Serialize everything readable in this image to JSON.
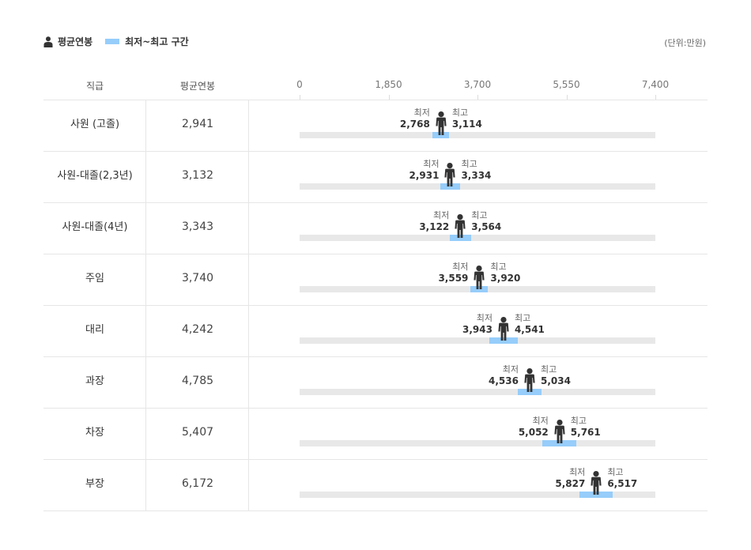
{
  "legend": {
    "avg_label": "평균연봉",
    "range_label": "최저~최고 구간"
  },
  "unit_label": "(단위:만원)",
  "headers": {
    "rank": "직급",
    "avg": "평균연봉"
  },
  "colors": {
    "band": "#96cdfa",
    "track": "#e8e8e8",
    "person": "#333333"
  },
  "chart_data": {
    "type": "range-bar",
    "xlim": [
      0,
      7400
    ],
    "ticks": [
      "0",
      "1,850",
      "3,700",
      "5,550",
      "7,400"
    ],
    "tick_values": [
      0,
      1850,
      3700,
      5550,
      7400
    ],
    "min_caption": "최저",
    "max_caption": "최고",
    "rows": [
      {
        "rank": "사원 (고졸)",
        "avg": 2941,
        "avg_label": "2,941",
        "min": 2768,
        "min_label": "2,768",
        "max": 3114,
        "max_label": "3,114"
      },
      {
        "rank": "사원-대졸(2,3년)",
        "avg": 3132,
        "avg_label": "3,132",
        "min": 2931,
        "min_label": "2,931",
        "max": 3334,
        "max_label": "3,334"
      },
      {
        "rank": "사원-대졸(4년)",
        "avg": 3343,
        "avg_label": "3,343",
        "min": 3122,
        "min_label": "3,122",
        "max": 3564,
        "max_label": "3,564"
      },
      {
        "rank": "주임",
        "avg": 3740,
        "avg_label": "3,740",
        "min": 3559,
        "min_label": "3,559",
        "max": 3920,
        "max_label": "3,920"
      },
      {
        "rank": "대리",
        "avg": 4242,
        "avg_label": "4,242",
        "min": 3943,
        "min_label": "3,943",
        "max": 4541,
        "max_label": "4,541"
      },
      {
        "rank": "과장",
        "avg": 4785,
        "avg_label": "4,785",
        "min": 4536,
        "min_label": "4,536",
        "max": 5034,
        "max_label": "5,034"
      },
      {
        "rank": "차장",
        "avg": 5407,
        "avg_label": "5,407",
        "min": 5052,
        "min_label": "5,052",
        "max": 5761,
        "max_label": "5,761"
      },
      {
        "rank": "부장",
        "avg": 6172,
        "avg_label": "6,172",
        "min": 5827,
        "min_label": "5,827",
        "max": 6517,
        "max_label": "6,517"
      }
    ]
  }
}
